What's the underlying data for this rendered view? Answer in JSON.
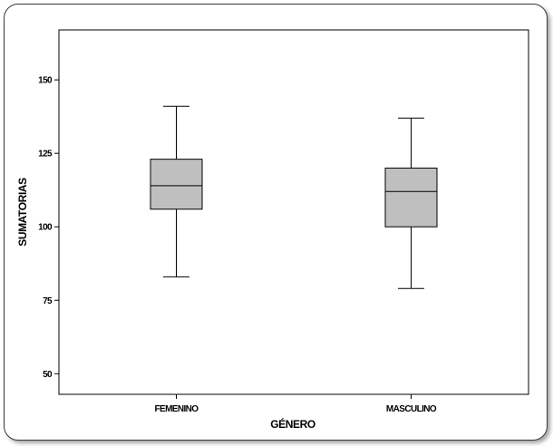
{
  "chart_data": {
    "type": "boxplot",
    "xlabel": "GÉNERO",
    "ylabel": "SUMATORIAS",
    "ylim": [
      43,
      167
    ],
    "y_ticks": [
      50,
      75,
      100,
      125,
      150
    ],
    "y_tick_labels": [
      "50",
      "75",
      "100",
      "125",
      "150"
    ],
    "categories": [
      "FEMENINO",
      "MASCULINO"
    ],
    "boxes": [
      {
        "category": "FEMENINO",
        "whisker_low": 83,
        "q1": 106,
        "median": 114,
        "q3": 123,
        "whisker_high": 141
      },
      {
        "category": "MASCULINO",
        "whisker_low": 79,
        "q1": 100,
        "median": 112,
        "q3": 120,
        "whisker_high": 137
      }
    ],
    "box_color": "#bfbfbf",
    "grid": false
  }
}
